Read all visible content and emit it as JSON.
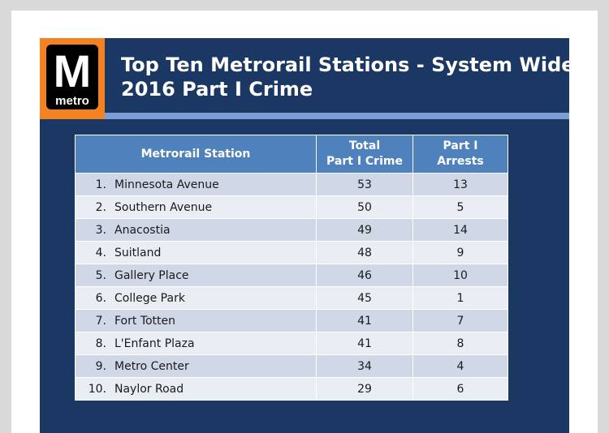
{
  "logo": {
    "letter": "M",
    "word": "metro"
  },
  "title": {
    "line1": "Top Ten Metrorail Stations - System Wide",
    "line2": "2016 Part I Crime"
  },
  "table": {
    "headers": {
      "station": "Metrorail Station",
      "crime_line1": "Total",
      "crime_line2": "Part I Crime",
      "arrests_line1": "Part I",
      "arrests_line2": "Arrests"
    },
    "rows": [
      {
        "rank": "1.",
        "station": "Minnesota Avenue",
        "crime": "53",
        "arrests": "13"
      },
      {
        "rank": "2.",
        "station": "Southern Avenue",
        "crime": "50",
        "arrests": "5"
      },
      {
        "rank": "3.",
        "station": "Anacostia",
        "crime": "49",
        "arrests": "14"
      },
      {
        "rank": "4.",
        "station": "Suitland",
        "crime": "48",
        "arrests": "9"
      },
      {
        "rank": "5.",
        "station": "Gallery Place",
        "crime": "46",
        "arrests": "10"
      },
      {
        "rank": "6.",
        "station": "College Park",
        "crime": "45",
        "arrests": "1"
      },
      {
        "rank": "7.",
        "station": "Fort Totten",
        "crime": "41",
        "arrests": "7"
      },
      {
        "rank": "8.",
        "station": "L'Enfant Plaza",
        "crime": "41",
        "arrests": "8"
      },
      {
        "rank": "9.",
        "station": "Metro Center",
        "crime": "34",
        "arrests": "4"
      },
      {
        "rank": "10.",
        "station": "Naylor Road",
        "crime": "29",
        "arrests": "6"
      }
    ]
  },
  "colors": {
    "slide_background": "#1b3864",
    "header_cell": "#4f81bd",
    "row_odd": "#d0d8e8",
    "row_even": "#e9edf4",
    "accent_blue": "#7d9ed5",
    "accent_orange": "#f58220"
  }
}
